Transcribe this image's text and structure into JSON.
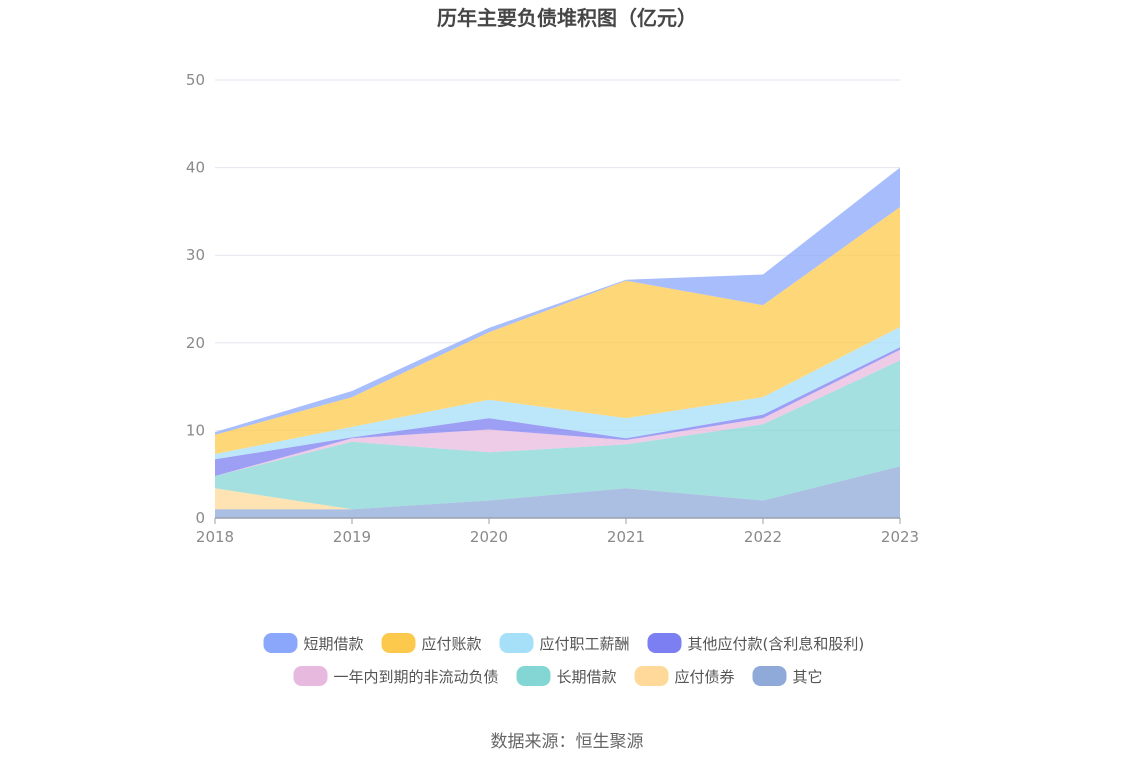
{
  "chart_data": {
    "type": "area",
    "stacked": true,
    "title": "历年主要负债堆积图（亿元）",
    "x": [
      "2018",
      "2019",
      "2020",
      "2021",
      "2022",
      "2023"
    ],
    "ylim": [
      0,
      50
    ],
    "yticks": [
      "0",
      "10",
      "20",
      "30",
      "40",
      "50"
    ],
    "grid": true,
    "legend_position": "bottom",
    "series": [
      {
        "name": "其它",
        "color": "#8fa9d9",
        "values": [
          1.0,
          1.0,
          2.0,
          3.4,
          2.0,
          5.9
        ]
      },
      {
        "name": "应付债券",
        "color": "#ffd99a",
        "values": [
          2.4,
          0.0,
          0.0,
          0.0,
          0.0,
          0.0
        ]
      },
      {
        "name": "长期借款",
        "color": "#84d6d4",
        "values": [
          1.4,
          7.7,
          5.5,
          5.0,
          8.7,
          12.1
        ]
      },
      {
        "name": "一年内到期的非流动负债",
        "color": "#e8b9de",
        "values": [
          0.0,
          0.4,
          2.6,
          0.5,
          0.7,
          1.2
        ]
      },
      {
        "name": "其他应付款(含利息和股利)",
        "color": "#7c7ff2",
        "values": [
          1.9,
          0.1,
          1.3,
          0.2,
          0.4,
          0.3
        ]
      },
      {
        "name": "应付职工薪酬",
        "color": "#a6dff8",
        "values": [
          0.6,
          1.2,
          2.1,
          2.3,
          2.0,
          2.3
        ]
      },
      {
        "name": "应付账款",
        "color": "#fdc94c",
        "values": [
          2.2,
          3.4,
          7.7,
          15.7,
          10.5,
          13.7
        ]
      },
      {
        "name": "短期借款",
        "color": "#8ba7fb",
        "values": [
          0.3,
          0.7,
          0.5,
          0.1,
          3.5,
          4.5
        ]
      }
    ],
    "legend_order": [
      "短期借款",
      "应付账款",
      "应付职工薪酬",
      "其他应付款(含利息和股利)",
      "一年内到期的非流动负债",
      "长期借款",
      "应付债券",
      "其它"
    ]
  },
  "source": "数据来源：恒生聚源"
}
